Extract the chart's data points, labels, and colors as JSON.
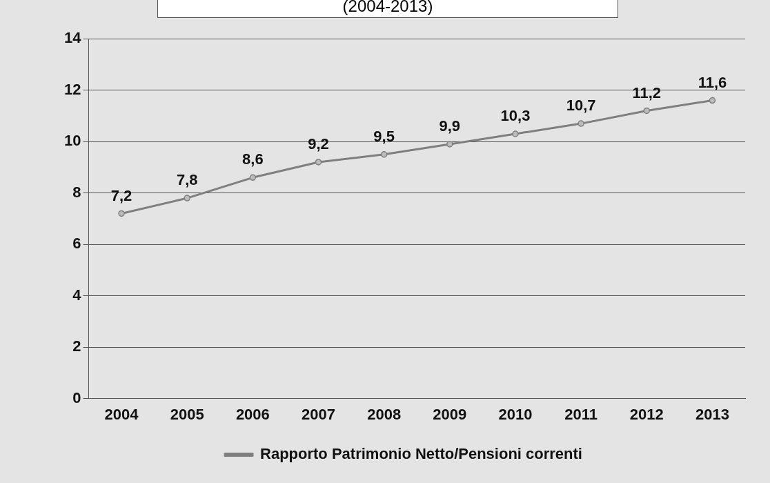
{
  "chart_data": {
    "type": "line",
    "title": "(2004-2013)",
    "categories": [
      "2004",
      "2005",
      "2006",
      "2007",
      "2008",
      "2009",
      "2010",
      "2011",
      "2012",
      "2013"
    ],
    "series": [
      {
        "name": "Rapporto Patrimonio Netto/Pensioni correnti",
        "color": "#7f7f7f",
        "values": [
          7.2,
          7.8,
          8.6,
          9.2,
          9.5,
          9.9,
          10.3,
          10.7,
          11.2,
          11.6
        ],
        "value_labels": [
          "7,2",
          "7,8",
          "8,6",
          "9,2",
          "9,5",
          "9,9",
          "10,3",
          "10,7",
          "11,2",
          "11,6"
        ]
      }
    ],
    "ylim": [
      0,
      14
    ],
    "yticks": [
      0,
      2,
      4,
      6,
      8,
      10,
      12,
      14
    ],
    "grid": "y",
    "legend": "bottom",
    "marker": "circle"
  }
}
